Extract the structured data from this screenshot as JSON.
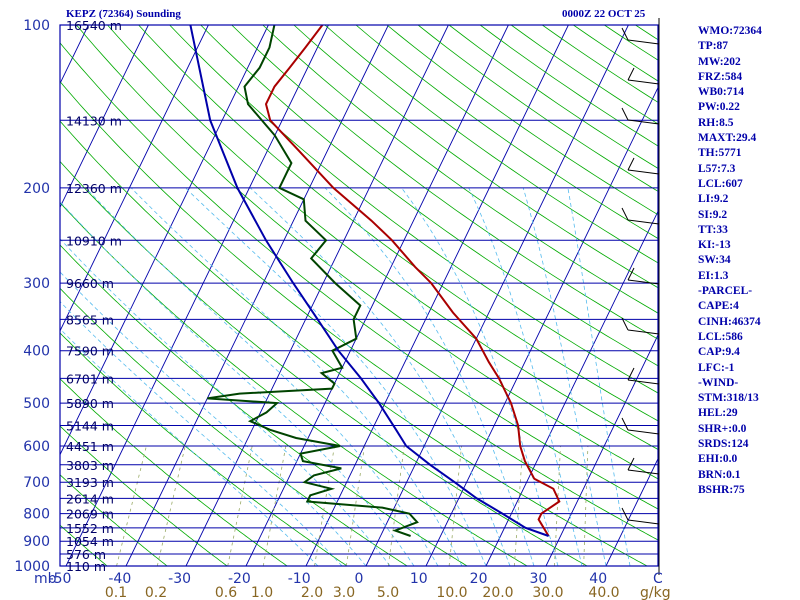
{
  "header": {
    "station": "KEPZ (72364) Sounding",
    "time": "0000Z 22 OCT 25"
  },
  "indices": [
    "WMO:72364",
    "TP:87",
    "MW:202",
    "FRZ:584",
    "WB0:714",
    "PW:0.22",
    "RH:8.5",
    "MAXT:29.4",
    "TH:5771",
    "L57:7.3",
    "LCL:607",
    "LI:9.2",
    "SI:9.2",
    "TT:33",
    "KI:-13",
    "SW:34",
    "EI:1.3",
    "-PARCEL-",
    "CAPE:4",
    "CINH:46374",
    "LCL:586",
    "CAP:9.4",
    "LFC:-1",
    "-WIND-",
    "STM:318/13",
    "HEL:29",
    "SHR+:0.0",
    "SRDS:124",
    "EHI:0.0",
    "BRN:0.1",
    "BSHR:75"
  ],
  "chart_data": {
    "type": "line",
    "subtype": "skew-T log-p sounding",
    "x_unit_label": "C",
    "mixing_ratio_unit_label": "g/kg",
    "pressure_axis_corner_label": "mb",
    "xlim": [
      -50,
      50
    ],
    "ylim_mb": [
      1000,
      100
    ],
    "pressure_ticks": [
      100,
      200,
      300,
      400,
      500,
      600,
      700,
      800,
      900,
      1000
    ],
    "temp_ticks": [
      -50,
      -40,
      -30,
      -20,
      -10,
      0,
      10,
      20,
      30,
      40
    ],
    "mixing_ratio_labels": [
      "0.1",
      "0.2",
      "0.6",
      "1.0",
      "2.0",
      "3.0",
      "5.0",
      "10.0",
      "20.0",
      "30.0",
      "40.0"
    ],
    "height_labels": [
      {
        "p": 100,
        "text": "16540 m"
      },
      {
        "p": 150,
        "text": "14130 m"
      },
      {
        "p": 200,
        "text": "12360 m"
      },
      {
        "p": 250,
        "text": "10910 m"
      },
      {
        "p": 300,
        "text": "9660 m"
      },
      {
        "p": 350,
        "text": "8565 m"
      },
      {
        "p": 400,
        "text": "7590 m"
      },
      {
        "p": 450,
        "text": "6701 m"
      },
      {
        "p": 500,
        "text": "5890 m"
      },
      {
        "p": 550,
        "text": "5144 m"
      },
      {
        "p": 600,
        "text": "4451 m"
      },
      {
        "p": 650,
        "text": "3803 m"
      },
      {
        "p": 700,
        "text": "3193 m"
      },
      {
        "p": 750,
        "text": "2614 m"
      },
      {
        "p": 800,
        "text": "2069 m"
      },
      {
        "p": 850,
        "text": "1552 m"
      },
      {
        "p": 900,
        "text": "1054 m"
      },
      {
        "p": 950,
        "text": "576 m"
      },
      {
        "p": 1000,
        "text": "110 m"
      }
    ],
    "series": [
      {
        "key": "temperature",
        "color": "#aa0000",
        "points": [
          [
            880,
            28
          ],
          [
            820,
            25
          ],
          [
            800,
            25
          ],
          [
            760,
            27
          ],
          [
            720,
            25
          ],
          [
            690,
            21
          ],
          [
            640,
            18
          ],
          [
            600,
            16
          ],
          [
            550,
            14
          ],
          [
            500,
            11
          ],
          [
            450,
            7
          ],
          [
            420,
            4
          ],
          [
            380,
            0
          ],
          [
            340,
            -6
          ],
          [
            300,
            -12
          ],
          [
            280,
            -16
          ],
          [
            250,
            -22
          ],
          [
            230,
            -27
          ],
          [
            200,
            -36
          ],
          [
            170,
            -45
          ],
          [
            150,
            -52
          ],
          [
            140,
            -54
          ],
          [
            130,
            -54
          ],
          [
            120,
            -53
          ],
          [
            110,
            -52
          ],
          [
            100,
            -51
          ]
        ]
      },
      {
        "key": "dewpoint",
        "color": "#004400",
        "points": [
          [
            880,
            5
          ],
          [
            860,
            2
          ],
          [
            830,
            5
          ],
          [
            800,
            3
          ],
          [
            780,
            -2
          ],
          [
            760,
            -15
          ],
          [
            740,
            -15
          ],
          [
            720,
            -12
          ],
          [
            700,
            -17
          ],
          [
            680,
            -16
          ],
          [
            660,
            -12
          ],
          [
            640,
            -19
          ],
          [
            620,
            -20
          ],
          [
            600,
            -14
          ],
          [
            580,
            -22
          ],
          [
            560,
            -27
          ],
          [
            540,
            -31
          ],
          [
            520,
            -29
          ],
          [
            500,
            -28
          ],
          [
            490,
            -40
          ],
          [
            480,
            -35
          ],
          [
            470,
            -20
          ],
          [
            460,
            -20
          ],
          [
            440,
            -23
          ],
          [
            430,
            -20
          ],
          [
            400,
            -23
          ],
          [
            380,
            -20
          ],
          [
            350,
            -22
          ],
          [
            330,
            -22
          ],
          [
            300,
            -28
          ],
          [
            270,
            -34
          ],
          [
            250,
            -33
          ],
          [
            230,
            -38
          ],
          [
            210,
            -40
          ],
          [
            200,
            -45
          ],
          [
            180,
            -45
          ],
          [
            160,
            -50
          ],
          [
            140,
            -57
          ],
          [
            130,
            -59
          ],
          [
            120,
            -58
          ],
          [
            110,
            -58
          ],
          [
            100,
            -59
          ]
        ]
      },
      {
        "key": "parcel",
        "color": "#0000aa",
        "points": [
          [
            880,
            28
          ],
          [
            850,
            23.5
          ],
          [
            800,
            18.5
          ],
          [
            750,
            13
          ],
          [
            700,
            8
          ],
          [
            650,
            2.5
          ],
          [
            600,
            -3
          ],
          [
            560,
            -6
          ],
          [
            500,
            -11
          ],
          [
            450,
            -16
          ],
          [
            400,
            -22
          ],
          [
            350,
            -28
          ],
          [
            300,
            -35
          ],
          [
            250,
            -43
          ],
          [
            200,
            -52
          ],
          [
            150,
            -62
          ],
          [
            100,
            -73
          ]
        ]
      }
    ]
  }
}
